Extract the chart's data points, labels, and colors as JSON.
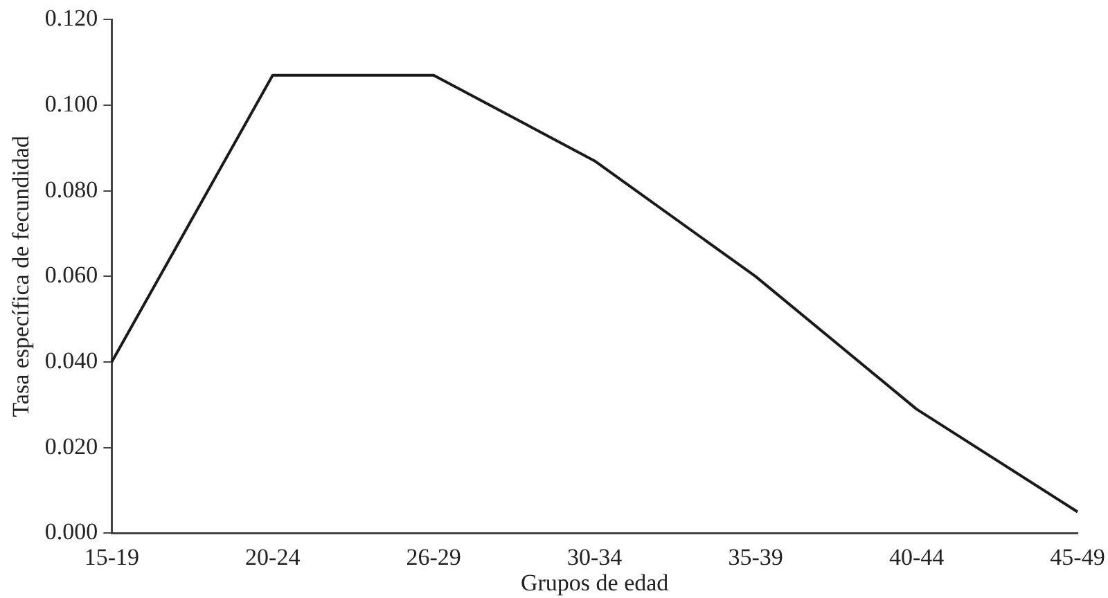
{
  "chart_data": {
    "type": "line",
    "xlabel": "Grupos de edad",
    "ylabel": "Tasa específica de fecundidad",
    "categories": [
      "15-19",
      "20-24",
      "26-29",
      "30-34",
      "35-39",
      "40-44",
      "45-49"
    ],
    "series": [
      {
        "color": "#1a1a1a",
        "values": [
          0.04,
          0.107,
          0.107,
          0.087,
          0.06,
          0.029,
          0.005
        ]
      }
    ],
    "ylim": [
      0,
      0.12
    ],
    "yticks": [
      {
        "value": 0,
        "label": "0.000"
      },
      {
        "value": 0.02,
        "label": "0.020"
      },
      {
        "value": 0.04,
        "label": "0.040"
      },
      {
        "value": 0.06,
        "label": "0.060"
      },
      {
        "value": 0.08,
        "label": "0.080"
      },
      {
        "value": 0.1,
        "label": "0.100"
      },
      {
        "value": 0.12,
        "label": "0.120"
      }
    ],
    "grid": false,
    "legend": false
  }
}
